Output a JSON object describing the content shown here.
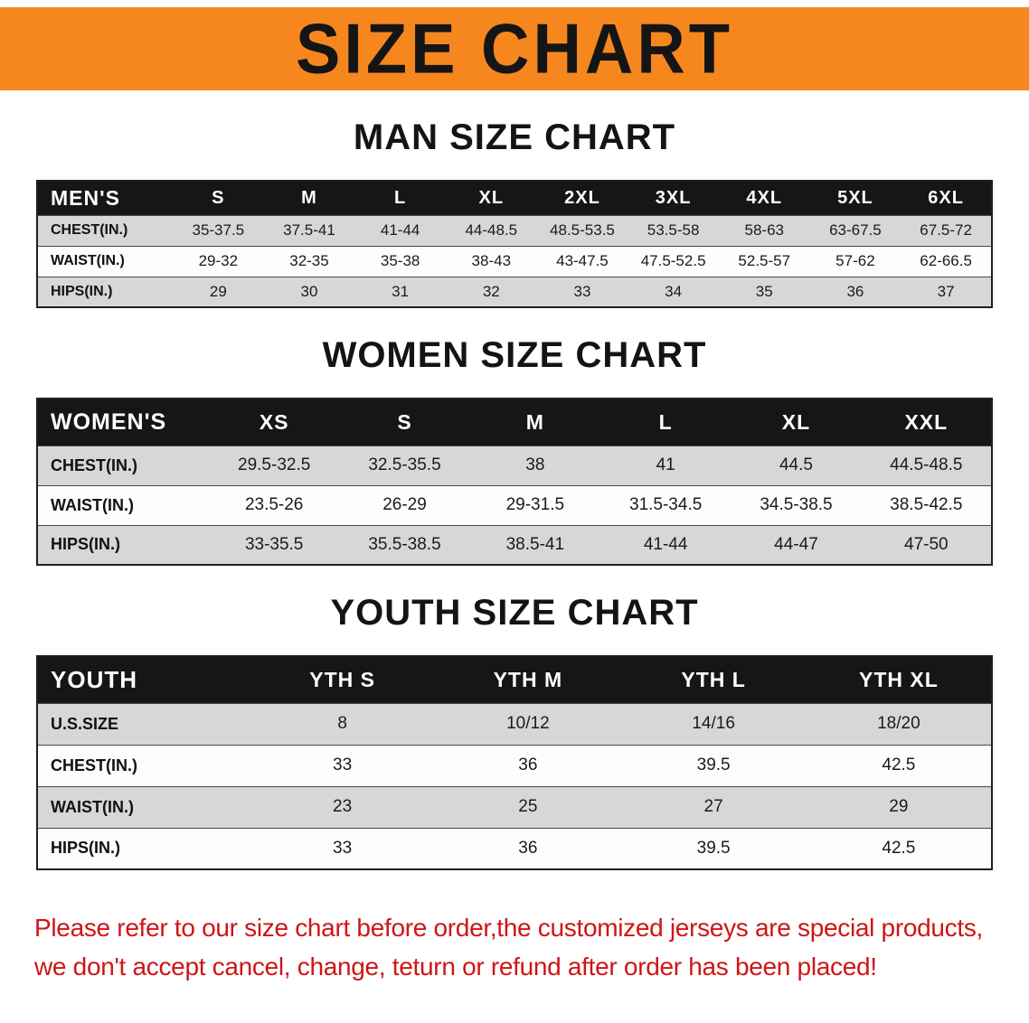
{
  "banner": {
    "title": "SIZE CHART",
    "bg_color": "#f6871f"
  },
  "sections": [
    {
      "heading": "MAN SIZE CHART",
      "table": {
        "header": [
          "MEN'S",
          "S",
          "M",
          "L",
          "XL",
          "2XL",
          "3XL",
          "4XL",
          "5XL",
          "6XL"
        ],
        "rows": [
          [
            "CHEST(IN.)",
            "35-37.5",
            "37.5-41",
            "41-44",
            "44-48.5",
            "48.5-53.5",
            "53.5-58",
            "58-63",
            "63-67.5",
            "67.5-72"
          ],
          [
            "WAIST(IN.)",
            "29-32",
            "32-35",
            "35-38",
            "38-43",
            "43-47.5",
            "47.5-52.5",
            "52.5-57",
            "57-62",
            "62-66.5"
          ],
          [
            "HIPS(IN.)",
            "29",
            "30",
            "31",
            "32",
            "33",
            "34",
            "35",
            "36",
            "37"
          ]
        ]
      }
    },
    {
      "heading": "WOMEN SIZE CHART",
      "table": {
        "header": [
          "WOMEN'S",
          "XS",
          "S",
          "M",
          "L",
          "XL",
          "XXL"
        ],
        "rows": [
          [
            "CHEST(IN.)",
            "29.5-32.5",
            "32.5-35.5",
            "38",
            "41",
            "44.5",
            "44.5-48.5"
          ],
          [
            "WAIST(IN.)",
            "23.5-26",
            "26-29",
            "29-31.5",
            "31.5-34.5",
            "34.5-38.5",
            "38.5-42.5"
          ],
          [
            "HIPS(IN.)",
            "33-35.5",
            "35.5-38.5",
            "38.5-41",
            "41-44",
            "44-47",
            "47-50"
          ]
        ]
      }
    },
    {
      "heading": "YOUTH SIZE CHART",
      "table": {
        "header": [
          "YOUTH",
          "YTH S",
          "YTH M",
          "YTH L",
          "YTH XL"
        ],
        "rows": [
          [
            "U.S.SIZE",
            "8",
            "10/12",
            "14/16",
            "18/20"
          ],
          [
            "CHEST(IN.)",
            "33",
            "36",
            "39.5",
            "42.5"
          ],
          [
            "WAIST(IN.)",
            "23",
            "25",
            "27",
            "29"
          ],
          [
            "HIPS(IN.)",
            "33",
            "36",
            "39.5",
            "42.5"
          ]
        ]
      }
    }
  ],
  "footer": {
    "lines": [
      "Please refer to our size chart before order,the customized jerseys are special products,",
      "we don't accept cancel, change, teturn or refund after order has been placed!"
    ],
    "color": "#cf1515"
  }
}
